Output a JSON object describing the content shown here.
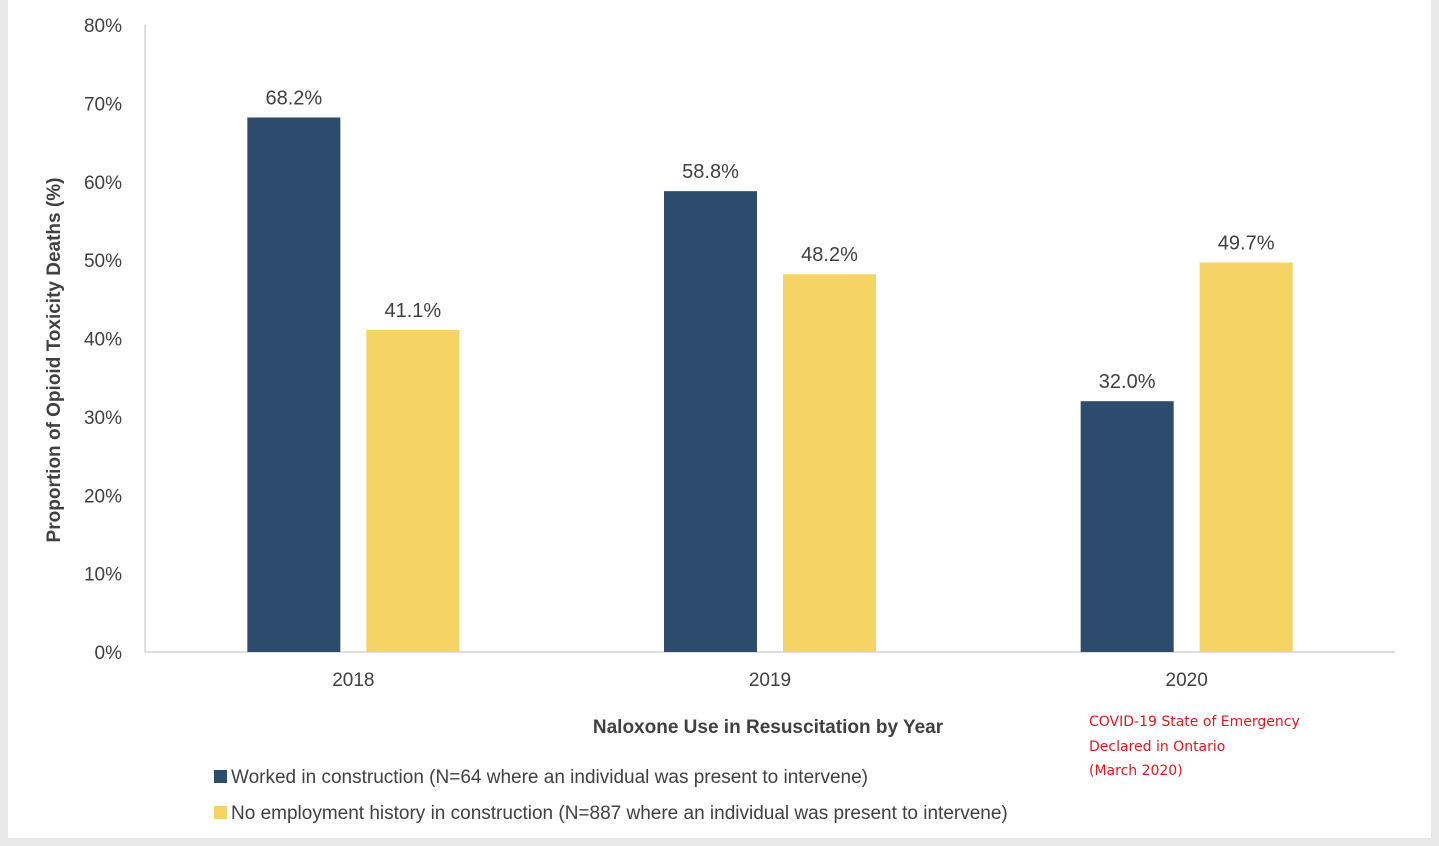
{
  "chart_data": {
    "type": "bar",
    "categories": [
      "2018",
      "2019",
      "2020"
    ],
    "series": [
      {
        "name": "Worked in construction (N=64 where an individual was present to intervene)",
        "color": "#2d4b6d",
        "values": [
          68.2,
          58.8,
          32.0
        ],
        "labels": [
          "68.2%",
          "58.8%",
          "32.0%"
        ]
      },
      {
        "name": "No employment history in construction (N=887 where an individual was present to intervene)",
        "color": "#f6d365",
        "values": [
          41.1,
          48.2,
          49.7
        ],
        "labels": [
          "41.1%",
          "48.2%",
          "49.7%"
        ]
      }
    ],
    "xlabel": "Naloxone Use in Resuscitation by Year",
    "ylabel": "Proportion of Opioid Toxicity Deaths (%)",
    "ylim": [
      0,
      80
    ],
    "yticks": [
      {
        "value": 0,
        "label": "0%"
      },
      {
        "value": 10,
        "label": "10%"
      },
      {
        "value": 20,
        "label": "20%"
      },
      {
        "value": 30,
        "label": "30%"
      },
      {
        "value": 40,
        "label": "40%"
      },
      {
        "value": 50,
        "label": "50%"
      },
      {
        "value": 60,
        "label": "60%"
      },
      {
        "value": 70,
        "label": "70%"
      },
      {
        "value": 80,
        "label": "80%"
      }
    ],
    "grid": false,
    "legend_position": "bottom-left",
    "annotation": {
      "lines": [
        "COVID-19 State of Emergency",
        "Declared in Ontario",
        "(March 2020)"
      ],
      "color": "#e8141b"
    }
  }
}
